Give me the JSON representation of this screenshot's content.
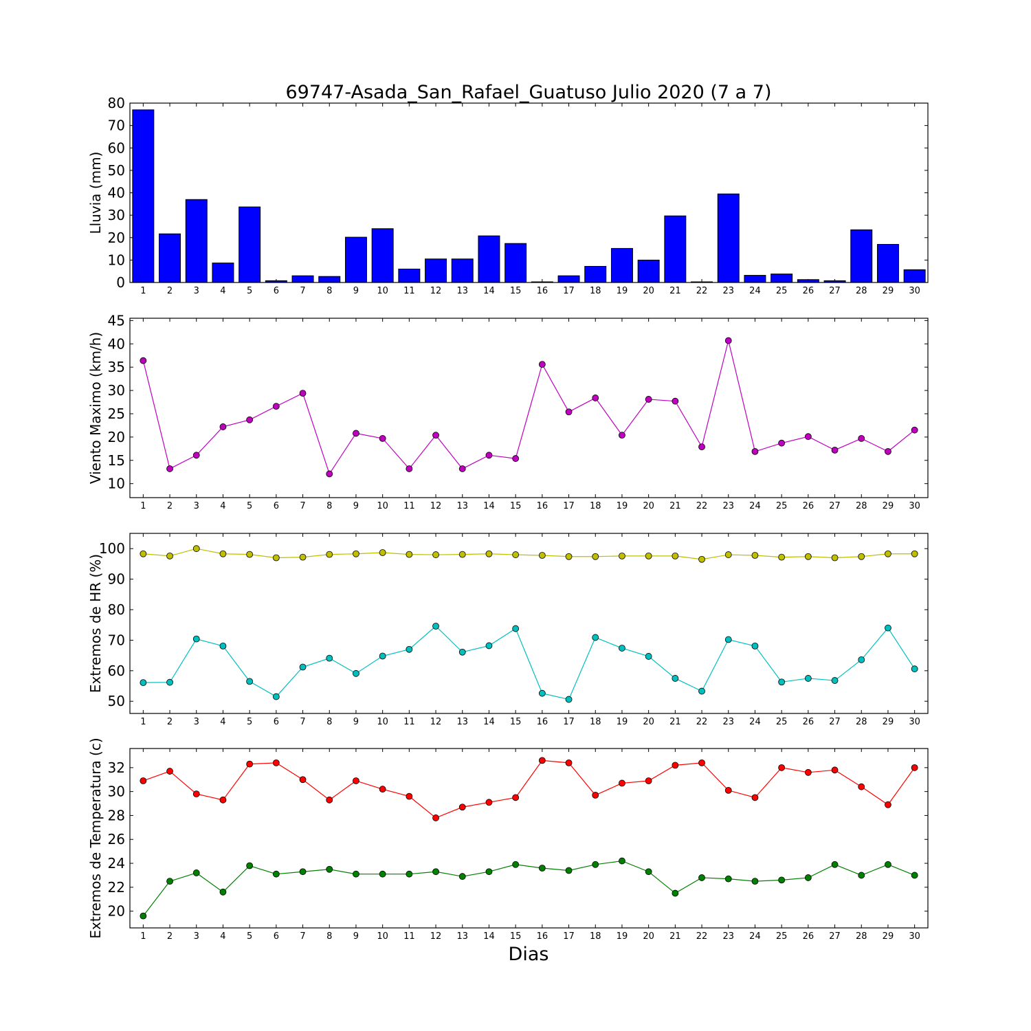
{
  "title": "69747-Asada_San_Rafael_Guatuso Julio 2020  (7 a 7)",
  "xlabel": "Dias",
  "chart_data": [
    {
      "type": "bar",
      "ylabel": "Lluvia (mm)",
      "ylim": [
        0,
        80
      ],
      "yticks": [
        0,
        10,
        20,
        30,
        40,
        50,
        60,
        70,
        80
      ],
      "x": [
        1,
        2,
        3,
        4,
        5,
        6,
        7,
        8,
        9,
        10,
        11,
        12,
        13,
        14,
        15,
        16,
        17,
        18,
        19,
        20,
        21,
        22,
        23,
        24,
        25,
        26,
        27,
        28,
        29,
        30
      ],
      "xlim": [
        0.5,
        30.5
      ],
      "series": [
        {
          "color": "#0000ff",
          "values": [
            77,
            21.7,
            37,
            8.7,
            33.7,
            0.8,
            3,
            2.7,
            20.2,
            24,
            6,
            10.5,
            10.5,
            20.8,
            17.4,
            0.3,
            3,
            7.2,
            15.2,
            10,
            29.7,
            0.3,
            39.5,
            3.2,
            3.8,
            1.3,
            0.8,
            23.5,
            17,
            5.7
          ]
        }
      ]
    },
    {
      "type": "line",
      "ylabel": "Viento Maximo (km/h)",
      "ylim": [
        7,
        45.5
      ],
      "yticks": [
        10,
        15,
        20,
        25,
        30,
        35,
        40,
        45
      ],
      "x": [
        1,
        2,
        3,
        4,
        5,
        6,
        7,
        8,
        9,
        10,
        11,
        12,
        13,
        14,
        15,
        16,
        17,
        18,
        19,
        20,
        21,
        22,
        23,
        24,
        25,
        26,
        27,
        28,
        29,
        30
      ],
      "xlim": [
        0.5,
        30.5
      ],
      "series": [
        {
          "color": "#bf00bf",
          "values": [
            36.4,
            13.2,
            16.1,
            22.2,
            23.7,
            26.6,
            29.4,
            12.1,
            20.8,
            19.7,
            13.2,
            20.4,
            13.2,
            16.1,
            15.4,
            35.6,
            25.4,
            28.4,
            20.4,
            28.1,
            27.7,
            17.9,
            40.7,
            16.9,
            18.7,
            20.1,
            17.2,
            19.7,
            16.9,
            21.5
          ]
        }
      ]
    },
    {
      "type": "line",
      "ylabel": "Extremos de HR (%)",
      "ylim": [
        46,
        105
      ],
      "yticks": [
        50,
        60,
        70,
        80,
        90,
        100
      ],
      "x": [
        1,
        2,
        3,
        4,
        5,
        6,
        7,
        8,
        9,
        10,
        11,
        12,
        13,
        14,
        15,
        16,
        17,
        18,
        19,
        20,
        21,
        22,
        23,
        24,
        25,
        26,
        27,
        28,
        29,
        30
      ],
      "xlim": [
        0.5,
        30.5
      ],
      "series": [
        {
          "color": "#bfbf00",
          "values": [
            98.3,
            97.6,
            100,
            98.3,
            98.1,
            97,
            97.2,
            98.1,
            98.3,
            98.7,
            98.1,
            98.0,
            98.1,
            98.3,
            98.0,
            97.8,
            97.4,
            97.4,
            97.6,
            97.6,
            97.6,
            96.5,
            98.0,
            97.8,
            97.2,
            97.4,
            97.0,
            97.4,
            98.3,
            98.3
          ]
        },
        {
          "color": "#00bfbf",
          "values": [
            56.1,
            56.2,
            70.4,
            68.1,
            56.5,
            51.5,
            61.2,
            64.1,
            59.1,
            64.8,
            67.0,
            74.6,
            66.1,
            68.2,
            73.8,
            52.6,
            50.6,
            70.9,
            67.4,
            64.7,
            57.5,
            53.3,
            70.2,
            68.1,
            56.3,
            57.5,
            56.8,
            63.6,
            74.0,
            60.6
          ]
        }
      ]
    },
    {
      "type": "line",
      "ylabel": "Extremos de Temperatura (c)",
      "ylim": [
        18.6,
        33.6
      ],
      "yticks": [
        20,
        22,
        24,
        26,
        28,
        30,
        32
      ],
      "x": [
        1,
        2,
        3,
        4,
        5,
        6,
        7,
        8,
        9,
        10,
        11,
        12,
        13,
        14,
        15,
        16,
        17,
        18,
        19,
        20,
        21,
        22,
        23,
        24,
        25,
        26,
        27,
        28,
        29,
        30
      ],
      "xlim": [
        0.5,
        30.5
      ],
      "series": [
        {
          "color": "#ff0000",
          "values": [
            30.9,
            31.7,
            29.8,
            29.3,
            32.3,
            32.4,
            31.0,
            29.3,
            30.9,
            30.2,
            29.6,
            27.8,
            28.7,
            29.1,
            29.5,
            32.6,
            32.4,
            29.7,
            30.7,
            30.9,
            32.2,
            32.4,
            30.1,
            29.5,
            32.0,
            31.6,
            31.8,
            30.4,
            28.9,
            32.0
          ]
        },
        {
          "color": "#008000",
          "values": [
            19.6,
            22.5,
            23.2,
            21.6,
            23.8,
            23.1,
            23.3,
            23.5,
            23.1,
            23.1,
            23.1,
            23.3,
            22.9,
            23.3,
            23.9,
            23.6,
            23.4,
            23.9,
            24.2,
            23.3,
            21.5,
            22.8,
            22.7,
            22.5,
            22.6,
            22.8,
            23.9,
            23.0,
            23.9,
            23.0
          ]
        }
      ]
    }
  ]
}
